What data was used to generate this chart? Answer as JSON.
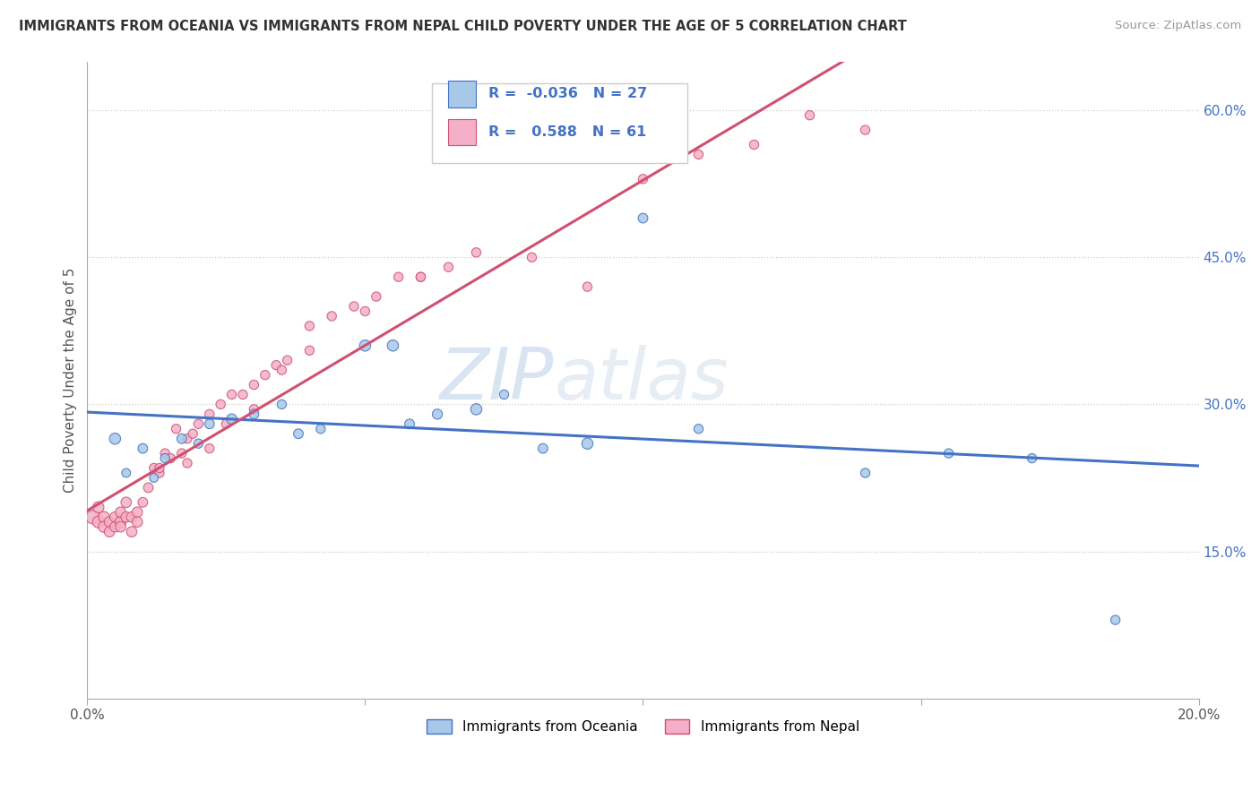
{
  "title": "IMMIGRANTS FROM OCEANIA VS IMMIGRANTS FROM NEPAL CHILD POVERTY UNDER THE AGE OF 5 CORRELATION CHART",
  "source": "Source: ZipAtlas.com",
  "ylabel": "Child Poverty Under the Age of 5",
  "legend_oceania": "Immigrants from Oceania",
  "legend_nepal": "Immigrants from Nepal",
  "R_oceania": -0.036,
  "N_oceania": 27,
  "R_nepal": 0.588,
  "N_nepal": 61,
  "color_oceania": "#a8c8e8",
  "color_nepal": "#f4b0c8",
  "line_color_oceania": "#4472c4",
  "line_color_nepal": "#d05070",
  "watermark_zip": "ZIP",
  "watermark_atlas": "atlas",
  "xlim": [
    0.0,
    0.2
  ],
  "ylim": [
    0.0,
    0.65
  ],
  "x_ticks": [
    0.0,
    0.05,
    0.1,
    0.15,
    0.2
  ],
  "y_ticks_right": [
    0.15,
    0.3,
    0.45,
    0.6
  ],
  "y_tick_labels_right": [
    "15.0%",
    "30.0%",
    "45.0%",
    "60.0%"
  ],
  "oceania_x": [
    0.005,
    0.007,
    0.01,
    0.012,
    0.014,
    0.017,
    0.02,
    0.022,
    0.026,
    0.03,
    0.035,
    0.038,
    0.042,
    0.05,
    0.055,
    0.058,
    0.063,
    0.07,
    0.075,
    0.082,
    0.09,
    0.1,
    0.11,
    0.14,
    0.155,
    0.17,
    0.185
  ],
  "oceania_y": [
    0.265,
    0.23,
    0.255,
    0.225,
    0.245,
    0.265,
    0.26,
    0.28,
    0.285,
    0.29,
    0.3,
    0.27,
    0.275,
    0.36,
    0.36,
    0.28,
    0.29,
    0.295,
    0.31,
    0.255,
    0.26,
    0.49,
    0.275,
    0.23,
    0.25,
    0.245,
    0.08
  ],
  "oceania_sizes": [
    80,
    50,
    60,
    50,
    55,
    60,
    55,
    60,
    70,
    60,
    55,
    60,
    55,
    80,
    80,
    60,
    65,
    80,
    55,
    60,
    80,
    60,
    55,
    55,
    55,
    55,
    55
  ],
  "nepal_x": [
    0.001,
    0.002,
    0.002,
    0.003,
    0.003,
    0.004,
    0.004,
    0.005,
    0.005,
    0.006,
    0.006,
    0.006,
    0.007,
    0.007,
    0.008,
    0.008,
    0.009,
    0.009,
    0.01,
    0.011,
    0.012,
    0.013,
    0.014,
    0.015,
    0.016,
    0.017,
    0.018,
    0.019,
    0.02,
    0.022,
    0.024,
    0.026,
    0.028,
    0.03,
    0.032,
    0.034,
    0.036,
    0.04,
    0.044,
    0.048,
    0.052,
    0.056,
    0.06,
    0.065,
    0.07,
    0.08,
    0.09,
    0.1,
    0.11,
    0.12,
    0.13,
    0.14,
    0.013,
    0.018,
    0.022,
    0.025,
    0.03,
    0.035,
    0.04,
    0.05,
    0.06
  ],
  "nepal_y": [
    0.185,
    0.18,
    0.195,
    0.185,
    0.175,
    0.18,
    0.17,
    0.185,
    0.175,
    0.18,
    0.19,
    0.175,
    0.185,
    0.2,
    0.185,
    0.17,
    0.19,
    0.18,
    0.2,
    0.215,
    0.235,
    0.23,
    0.25,
    0.245,
    0.275,
    0.25,
    0.265,
    0.27,
    0.28,
    0.29,
    0.3,
    0.31,
    0.31,
    0.32,
    0.33,
    0.34,
    0.345,
    0.38,
    0.39,
    0.4,
    0.41,
    0.43,
    0.43,
    0.44,
    0.455,
    0.45,
    0.42,
    0.53,
    0.555,
    0.565,
    0.595,
    0.58,
    0.235,
    0.24,
    0.255,
    0.28,
    0.295,
    0.335,
    0.355,
    0.395,
    0.43
  ],
  "nepal_sizes": [
    120,
    90,
    80,
    80,
    80,
    70,
    70,
    70,
    70,
    80,
    70,
    70,
    70,
    70,
    70,
    70,
    70,
    70,
    60,
    60,
    55,
    55,
    55,
    55,
    55,
    55,
    55,
    55,
    55,
    55,
    55,
    55,
    55,
    55,
    55,
    55,
    55,
    55,
    55,
    55,
    55,
    55,
    55,
    55,
    55,
    55,
    55,
    55,
    55,
    55,
    55,
    55,
    55,
    55,
    55,
    55,
    55,
    55,
    55,
    55,
    55
  ]
}
